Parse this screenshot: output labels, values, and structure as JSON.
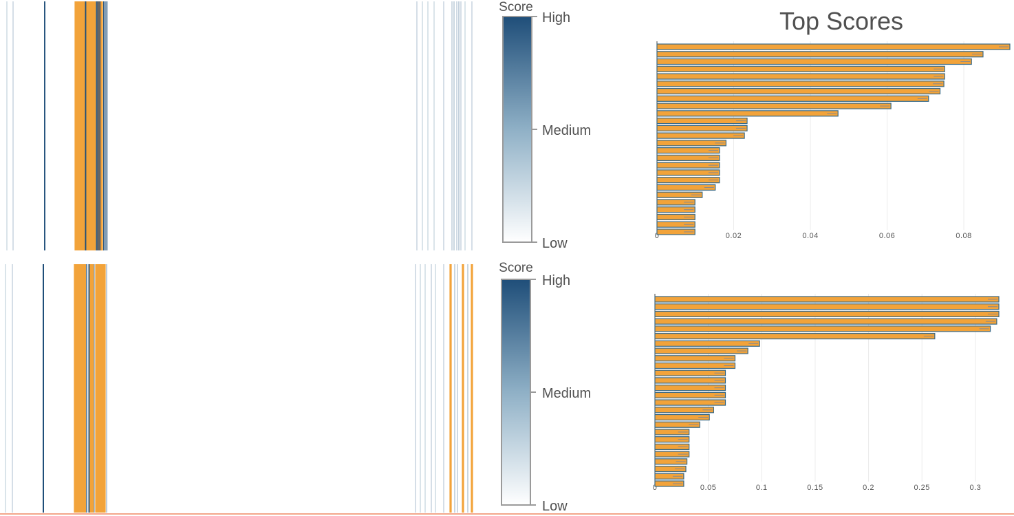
{
  "colors": {
    "barcode_high": "#1f4e79",
    "barcode_low": "#dfe8ef",
    "highlight": "#f2a33a",
    "highlight_stroke": "#3a6a87",
    "selected_dark": "#656565",
    "grid": "#ebebeb"
  },
  "panels": [
    {
      "colorbar": {
        "title": "Score",
        "high": "High",
        "medium": "Medium",
        "low": "Low"
      },
      "chart_data": {
        "type": "bar",
        "orientation": "horizontal",
        "title": "Top Scores",
        "xlim": [
          0,
          0.092
        ],
        "xticks": [
          0,
          0.02,
          0.04,
          0.06,
          0.08
        ],
        "xtick_labels": [
          "0",
          "0.02",
          "0.04",
          "0.06",
          "0.08"
        ],
        "values": [
          0.092,
          0.085,
          0.082,
          0.075,
          0.075,
          0.0748,
          0.0738,
          0.0708,
          0.061,
          0.0472,
          0.0235,
          0.0235,
          0.0228,
          0.018,
          0.0163,
          0.0163,
          0.0163,
          0.0163,
          0.0163,
          0.0152,
          0.0118,
          0.0099,
          0.0099,
          0.0099,
          0.0099,
          0.0099
        ]
      },
      "barcode": {
        "lines": [
          {
            "x": 10,
            "s": 0.15
          },
          {
            "x": 19,
            "s": 0.2
          },
          {
            "x": 65,
            "s": 0.95
          },
          {
            "x": 110,
            "s": 1,
            "hl": true
          },
          {
            "x": 113,
            "s": 1,
            "hl": true
          },
          {
            "x": 116,
            "s": 1,
            "hl": true
          },
          {
            "x": 119,
            "s": 1,
            "hl": true
          },
          {
            "x": 122,
            "s": 1,
            "hl": true
          },
          {
            "x": 124.5,
            "s": 1
          },
          {
            "x": 127,
            "s": 1,
            "hl": true
          },
          {
            "x": 130,
            "s": 1,
            "hl": true
          },
          {
            "x": 132,
            "s": 1,
            "hl": true
          },
          {
            "x": 135,
            "s": 1,
            "hl": true
          },
          {
            "x": 138,
            "s": 1,
            "hl": true
          },
          {
            "x": 140.5,
            "s": 0.9
          },
          {
            "x": 143,
            "s": 1,
            "dark": true
          },
          {
            "x": 146,
            "s": 1,
            "dark": true
          },
          {
            "x": 148,
            "s": 1,
            "hl": true
          },
          {
            "x": 151,
            "s": 0.95
          },
          {
            "x": 154,
            "s": 0.6
          },
          {
            "x": 156,
            "s": 0.5
          },
          {
            "x": 606,
            "s": 0.2
          },
          {
            "x": 614,
            "s": 0.15
          },
          {
            "x": 622,
            "s": 0.15
          },
          {
            "x": 631,
            "s": 0.15
          },
          {
            "x": 645,
            "s": 0.2
          },
          {
            "x": 657,
            "s": 0.25
          },
          {
            "x": 660,
            "s": 0.3
          },
          {
            "x": 664,
            "s": 0.25
          },
          {
            "x": 667,
            "s": 0.35
          },
          {
            "x": 670,
            "s": 0.2
          },
          {
            "x": 676,
            "s": 0.15
          },
          {
            "x": 686,
            "s": 0.2
          }
        ]
      }
    },
    {
      "colorbar": {
        "title": "Score",
        "high": "High",
        "medium": "Medium",
        "low": "Low"
      },
      "chart_data": {
        "type": "bar",
        "orientation": "horizontal",
        "title": "",
        "xlim": [
          0,
          0.322
        ],
        "xticks": [
          0,
          0.05,
          0.1,
          0.15,
          0.2,
          0.25,
          0.3
        ],
        "xtick_labels": [
          "0",
          "0.05",
          "0.1",
          "0.15",
          "0.2",
          "0.25",
          "0.3"
        ],
        "values": [
          0.322,
          0.322,
          0.322,
          0.32,
          0.314,
          0.262,
          0.098,
          0.087,
          0.075,
          0.075,
          0.066,
          0.066,
          0.066,
          0.066,
          0.066,
          0.055,
          0.051,
          0.042,
          0.032,
          0.032,
          0.032,
          0.032,
          0.03,
          0.029,
          0.027,
          0.027
        ]
      },
      "barcode": {
        "lines": [
          {
            "x": 8,
            "s": 0.15
          },
          {
            "x": 18,
            "s": 0.2
          },
          {
            "x": 63,
            "s": 1
          },
          {
            "x": 109,
            "s": 1,
            "hl": true
          },
          {
            "x": 112,
            "s": 1,
            "hl": true
          },
          {
            "x": 115,
            "s": 1,
            "hl": true
          },
          {
            "x": 118,
            "s": 1,
            "hl": true
          },
          {
            "x": 121,
            "s": 1,
            "hl": true
          },
          {
            "x": 124,
            "s": 1,
            "hl": true
          },
          {
            "x": 126,
            "s": 0.6
          },
          {
            "x": 129.5,
            "s": 0.95
          },
          {
            "x": 132,
            "s": 1,
            "hl": true
          },
          {
            "x": 135,
            "s": 1,
            "hl": true
          },
          {
            "x": 137,
            "s": 0.5
          },
          {
            "x": 140,
            "s": 1,
            "hl": true
          },
          {
            "x": 143,
            "s": 1,
            "hl": true
          },
          {
            "x": 146,
            "s": 1,
            "hl": true
          },
          {
            "x": 149,
            "s": 1,
            "hl": true
          },
          {
            "x": 152,
            "s": 1,
            "hl": true
          },
          {
            "x": 155,
            "s": 0.4
          },
          {
            "x": 604,
            "s": 0.2
          },
          {
            "x": 611,
            "s": 0.15
          },
          {
            "x": 618,
            "s": 0.15
          },
          {
            "x": 627,
            "s": 0.2
          },
          {
            "x": 633,
            "s": 0.15
          },
          {
            "x": 645,
            "s": 0.2
          },
          {
            "x": 655,
            "s": 1,
            "hl": true
          },
          {
            "x": 661,
            "s": 0.3
          },
          {
            "x": 665,
            "s": 0.25
          },
          {
            "x": 673,
            "s": 1,
            "hl": true
          },
          {
            "x": 680,
            "s": 0.3
          },
          {
            "x": 686,
            "s": 1,
            "hl": true
          }
        ]
      }
    }
  ]
}
